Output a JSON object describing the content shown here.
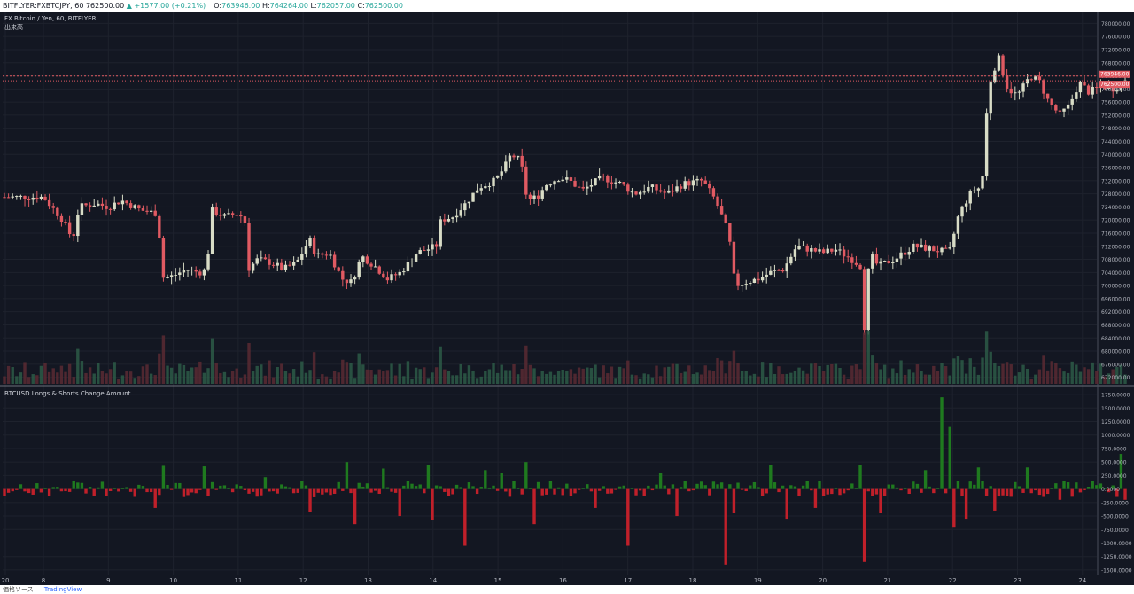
{
  "header": {
    "symbol": "BITFLYER:FXBTCJPY, 60",
    "last": "762500.00",
    "change": "▲ +1577.00 (+0.21%)",
    "o_label": "O:",
    "o_value": "763946.00",
    "h_label": "H:",
    "h_value": "764264.00",
    "l_label": "L:",
    "l_value": "762057.00",
    "c_label": "C:",
    "c_value": "762500.00"
  },
  "legend": {
    "price_title": "FX Bitcoin / Yen, 60, BITFLYER",
    "volume_title": "出来高",
    "indicator_title": "BTCUSD Longs & Shorts Change Amount"
  },
  "price_badges": {
    "upper": "763946.00",
    "lower": "762500.00"
  },
  "footer": {
    "left": "価格ソース",
    "brand": "TradingView"
  },
  "colors": {
    "background": "#131722",
    "grid": "#1e222d",
    "axis_text": "#b2b5be",
    "up": "#26a69a",
    "down": "#ef5350",
    "candle_up": "#d8dcc6",
    "candle_down": "#e05a62",
    "bar_positive": "#1f7a1f",
    "bar_negative": "#c0202a",
    "current_price_line": "#e05a62"
  },
  "chart_data": [
    {
      "type": "candlestick",
      "title": "FX Bitcoin / Yen, 60, BITFLYER",
      "ylim": [
        670000,
        782000
      ],
      "y_ticks": [
        780000,
        776000,
        772000,
        768000,
        764000,
        760000,
        756000,
        752000,
        748000,
        744000,
        740000,
        736000,
        732000,
        728000,
        724000,
        720000,
        716000,
        712000,
        708000,
        704000,
        700000,
        696000,
        692000,
        688000,
        684000,
        680000,
        676000,
        672000
      ],
      "x_labels": [
        "20",
        "8",
        "9",
        "10",
        "11",
        "12",
        "13",
        "14",
        "15",
        "16",
        "17",
        "18",
        "19",
        "20",
        "21",
        "22",
        "23",
        "24"
      ],
      "close_path": [
        {
          "d": 0.0,
          "v": 727000
        },
        {
          "d": 0.3,
          "v": 720000
        },
        {
          "d": 0.45,
          "v": 714000
        },
        {
          "d": 0.55,
          "v": 724000
        },
        {
          "d": 0.8,
          "v": 725000
        },
        {
          "d": 1.0,
          "v": 724000
        },
        {
          "d": 1.2,
          "v": 726000
        },
        {
          "d": 1.5,
          "v": 723000
        },
        {
          "d": 1.75,
          "v": 722000
        },
        {
          "d": 1.85,
          "v": 702000
        },
        {
          "d": 2.0,
          "v": 703000
        },
        {
          "d": 2.2,
          "v": 705000
        },
        {
          "d": 2.4,
          "v": 704000
        },
        {
          "d": 2.52,
          "v": 705000
        },
        {
          "d": 2.58,
          "v": 723000
        },
        {
          "d": 2.8,
          "v": 721000
        },
        {
          "d": 3.0,
          "v": 722000
        },
        {
          "d": 3.1,
          "v": 720000
        },
        {
          "d": 3.15,
          "v": 705000
        },
        {
          "d": 3.3,
          "v": 708000
        },
        {
          "d": 3.5,
          "v": 707000
        },
        {
          "d": 3.7,
          "v": 705000
        },
        {
          "d": 3.9,
          "v": 707000
        },
        {
          "d": 4.1,
          "v": 714000
        },
        {
          "d": 4.2,
          "v": 709000
        },
        {
          "d": 4.4,
          "v": 710000
        },
        {
          "d": 4.6,
          "v": 702000
        },
        {
          "d": 4.75,
          "v": 701000
        },
        {
          "d": 4.9,
          "v": 709000
        },
        {
          "d": 5.1,
          "v": 706000
        },
        {
          "d": 5.3,
          "v": 702000
        },
        {
          "d": 5.5,
          "v": 704000
        },
        {
          "d": 5.75,
          "v": 710000
        },
        {
          "d": 5.9,
          "v": 711000
        },
        {
          "d": 6.05,
          "v": 712000
        },
        {
          "d": 6.12,
          "v": 720000
        },
        {
          "d": 6.3,
          "v": 721000
        },
        {
          "d": 6.5,
          "v": 725000
        },
        {
          "d": 6.7,
          "v": 730000
        },
        {
          "d": 6.95,
          "v": 732000
        },
        {
          "d": 7.1,
          "v": 736000
        },
        {
          "d": 7.2,
          "v": 740000
        },
        {
          "d": 7.35,
          "v": 738000
        },
        {
          "d": 7.45,
          "v": 726000
        },
        {
          "d": 7.6,
          "v": 727000
        },
        {
          "d": 7.75,
          "v": 731000
        },
        {
          "d": 7.95,
          "v": 733000
        },
        {
          "d": 8.1,
          "v": 732000
        },
        {
          "d": 8.3,
          "v": 729000
        },
        {
          "d": 8.6,
          "v": 733000
        },
        {
          "d": 8.9,
          "v": 731000
        },
        {
          "d": 9.1,
          "v": 728000
        },
        {
          "d": 9.35,
          "v": 730000
        },
        {
          "d": 9.6,
          "v": 728000
        },
        {
          "d": 9.85,
          "v": 731000
        },
        {
          "d": 10.15,
          "v": 732000
        },
        {
          "d": 10.35,
          "v": 726000
        },
        {
          "d": 10.55,
          "v": 716000
        },
        {
          "d": 10.65,
          "v": 700000
        },
        {
          "d": 10.8,
          "v": 701000
        },
        {
          "d": 11.0,
          "v": 702000
        },
        {
          "d": 11.2,
          "v": 704000
        },
        {
          "d": 11.4,
          "v": 705000
        },
        {
          "d": 11.6,
          "v": 712000
        },
        {
          "d": 11.8,
          "v": 711000
        },
        {
          "d": 12.0,
          "v": 710000
        },
        {
          "d": 12.2,
          "v": 711000
        },
        {
          "d": 12.45,
          "v": 708000
        },
        {
          "d": 12.58,
          "v": 706000
        },
        {
          "d": 12.65,
          "v": 685000
        },
        {
          "d": 12.72,
          "v": 710000
        },
        {
          "d": 12.85,
          "v": 706000
        },
        {
          "d": 13.1,
          "v": 708000
        },
        {
          "d": 13.4,
          "v": 712000
        },
        {
          "d": 13.7,
          "v": 711000
        },
        {
          "d": 13.95,
          "v": 710000
        },
        {
          "d": 14.1,
          "v": 722000
        },
        {
          "d": 14.3,
          "v": 729000
        },
        {
          "d": 14.45,
          "v": 730000
        },
        {
          "d": 14.55,
          "v": 760000
        },
        {
          "d": 14.7,
          "v": 770000
        },
        {
          "d": 14.85,
          "v": 760000
        },
        {
          "d": 15.0,
          "v": 758000
        },
        {
          "d": 15.2,
          "v": 764000
        },
        {
          "d": 15.35,
          "v": 762000
        },
        {
          "d": 15.45,
          "v": 757000
        },
        {
          "d": 15.65,
          "v": 752000
        },
        {
          "d": 15.8,
          "v": 755000
        },
        {
          "d": 15.95,
          "v": 762000
        },
        {
          "d": 16.1,
          "v": 759000
        },
        {
          "d": 16.3,
          "v": 761000
        },
        {
          "d": 16.5,
          "v": 760000
        },
        {
          "d": 16.65,
          "v": 763000
        }
      ]
    },
    {
      "type": "bar",
      "title": "出来高",
      "description_series": "volume per hourly candle"
    },
    {
      "type": "bar",
      "title": "BTCUSD Longs & Shorts Change Amount",
      "ylim": [
        -1600,
        1850
      ],
      "y_ticks": [
        "1750.0000",
        "1500.0000",
        "1250.0000",
        "1000.0000",
        "750.0000",
        "500.0000",
        "250.0000",
        "0.0000",
        "-250.0000",
        "-500.0000",
        "-750.0000",
        "-1000.0000",
        "-1250.0000",
        "-1500.0000"
      ],
      "spikes": [
        {
          "d": 1.72,
          "v": -350
        },
        {
          "d": 1.85,
          "v": 430
        },
        {
          "d": 2.45,
          "v": 420
        },
        {
          "d": 3.4,
          "v": 220
        },
        {
          "d": 4.1,
          "v": -420
        },
        {
          "d": 4.65,
          "v": 500
        },
        {
          "d": 4.75,
          "v": -650
        },
        {
          "d": 5.2,
          "v": 380
        },
        {
          "d": 5.45,
          "v": -500
        },
        {
          "d": 5.9,
          "v": 450
        },
        {
          "d": 5.95,
          "v": -580
        },
        {
          "d": 6.45,
          "v": -1050
        },
        {
          "d": 6.75,
          "v": 350
        },
        {
          "d": 7.05,
          "v": 300
        },
        {
          "d": 7.4,
          "v": 500
        },
        {
          "d": 7.5,
          "v": -650
        },
        {
          "d": 8.5,
          "v": -350
        },
        {
          "d": 9.0,
          "v": -1050
        },
        {
          "d": 9.45,
          "v": 300
        },
        {
          "d": 9.75,
          "v": -500
        },
        {
          "d": 10.45,
          "v": -1400
        },
        {
          "d": 10.6,
          "v": -450
        },
        {
          "d": 11.2,
          "v": 450
        },
        {
          "d": 11.45,
          "v": -550
        },
        {
          "d": 11.85,
          "v": -350
        },
        {
          "d": 12.55,
          "v": 450
        },
        {
          "d": 12.62,
          "v": -1350
        },
        {
          "d": 12.85,
          "v": -450
        },
        {
          "d": 13.55,
          "v": 350
        },
        {
          "d": 13.83,
          "v": 1700
        },
        {
          "d": 13.95,
          "v": 1150
        },
        {
          "d": 14.0,
          "v": -700
        },
        {
          "d": 14.2,
          "v": -550
        },
        {
          "d": 14.4,
          "v": 400
        },
        {
          "d": 14.6,
          "v": -400
        },
        {
          "d": 15.1,
          "v": 400
        },
        {
          "d": 15.6,
          "v": -200
        },
        {
          "d": 16.55,
          "v": 650
        },
        {
          "d": 16.6,
          "v": -200
        }
      ]
    }
  ]
}
